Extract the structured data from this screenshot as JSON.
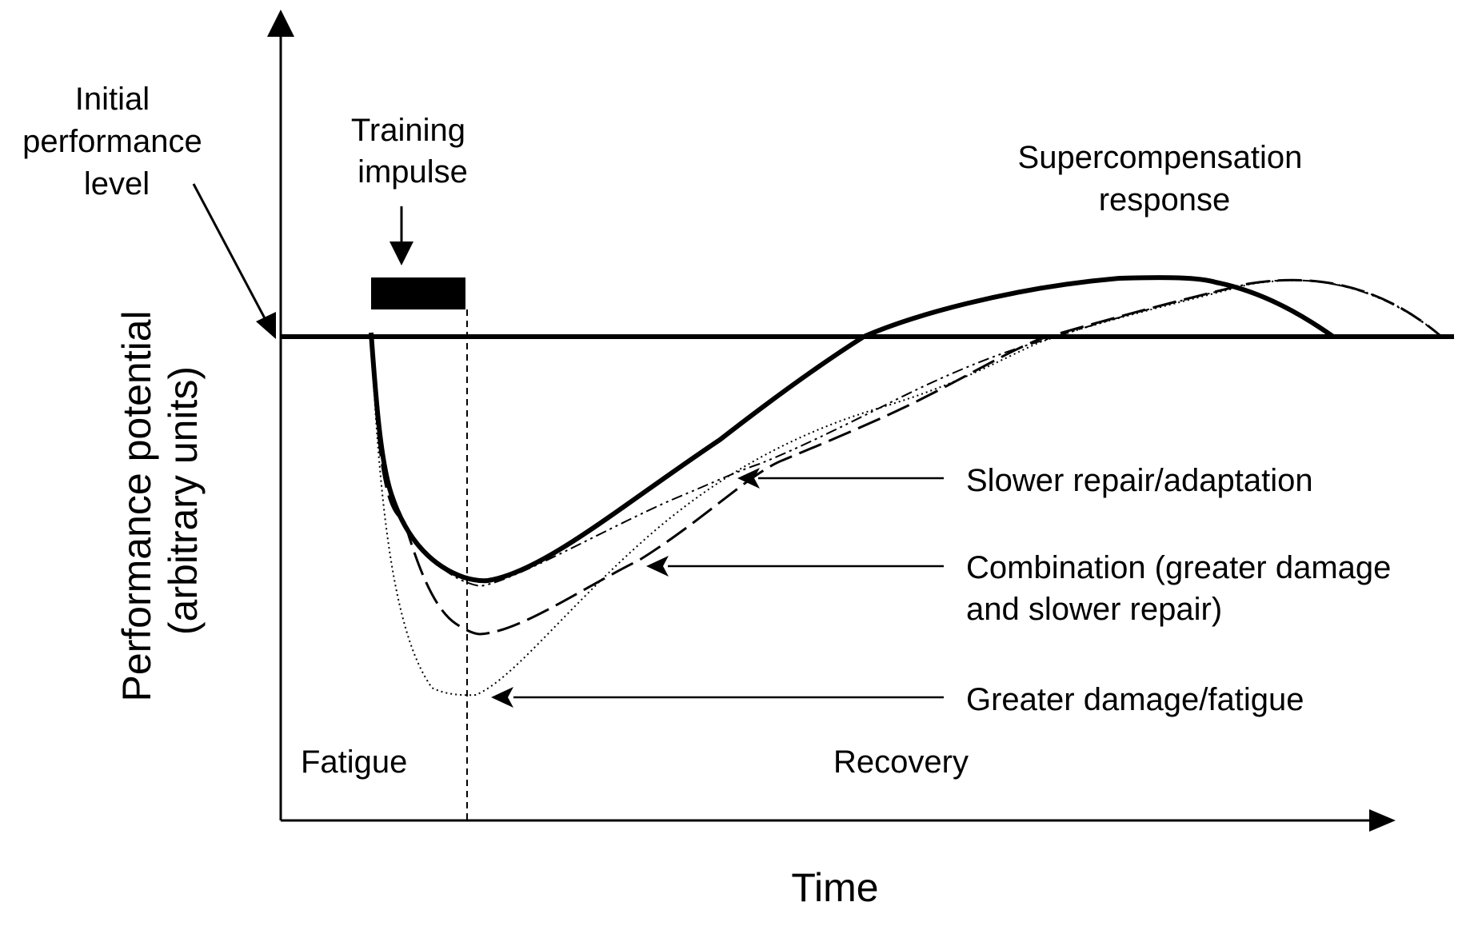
{
  "labels": {
    "initial": [
      "Initial",
      "performance",
      "level"
    ],
    "impulse": [
      "Training",
      "impulse"
    ],
    "supercomp": [
      "Supercompensation",
      "response"
    ],
    "slower": "Slower repair/adaptation",
    "combination": [
      "Combination (greater damage",
      "and slower repair)"
    ],
    "greater": "Greater damage/fatigue",
    "fatigue": "Fatigue",
    "recovery": "Recovery",
    "xaxis": "Time",
    "yaxis": [
      "Performance potential",
      "(arbitrary units)"
    ]
  },
  "colors": {
    "ink": "#000000",
    "background": "#ffffff"
  }
}
